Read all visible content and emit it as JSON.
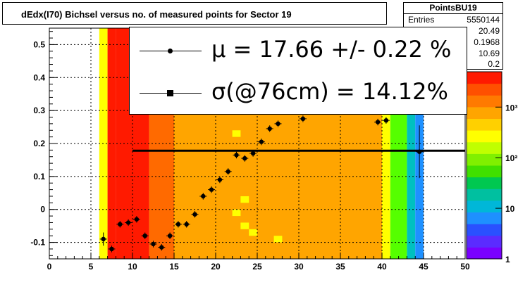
{
  "title": "dEdx(I70) Bichsel versus no. of measured points for Sector 19",
  "stats": {
    "name": "PointsBU19",
    "rows": [
      {
        "label": "Entries",
        "value": "5550144"
      },
      {
        "label": "",
        "value": "20.49"
      },
      {
        "label": "",
        "value": "0.1968"
      },
      {
        "label": "",
        "value": "10.69"
      },
      {
        "label": "",
        "value": "0.2"
      }
    ]
  },
  "legend": {
    "mu_text": "μ  = 17.66 +/-  0.22 %",
    "sigma_text": "σ(@76cm) = 14.12%"
  },
  "colors": {
    "red": "#ff1a00",
    "orange_red": "#ff6a00",
    "orange": "#ffa500",
    "yellow": "#ffff00",
    "green": "#55ff00",
    "cyan": "#00c0c0",
    "blue": "#1e90ff",
    "violet": "#7a00ff"
  },
  "chart_data": {
    "type": "heatmap",
    "xlim": [
      0,
      50
    ],
    "ylim": [
      -0.15,
      0.55
    ],
    "x_ticks": [
      "0",
      "5",
      "10",
      "15",
      "20",
      "25",
      "30",
      "35",
      "40",
      "45",
      "50"
    ],
    "y_ticks": [
      "-0.1",
      "0",
      "0.1",
      "0.2",
      "0.3",
      "0.4",
      "0.5"
    ],
    "z_scale": "log",
    "z_ticks": [
      "1",
      "10",
      "10²",
      "10³"
    ],
    "grid": true,
    "heatmap_columns": [
      {
        "x": [
          6,
          7
        ],
        "level": "yellow"
      },
      {
        "x": [
          7,
          8
        ],
        "level": "red"
      },
      {
        "x": [
          8,
          12
        ],
        "level": "red"
      },
      {
        "x": [
          12,
          15
        ],
        "level": "orange_red"
      },
      {
        "x": [
          15,
          40
        ],
        "level": "orange"
      },
      {
        "x": [
          40,
          41
        ],
        "level": "yellow"
      },
      {
        "x": [
          41,
          43
        ],
        "level": "green"
      },
      {
        "x": [
          43,
          44
        ],
        "level": "cyan"
      },
      {
        "x": [
          44,
          45
        ],
        "level": "blue"
      }
    ],
    "points": [
      {
        "x": 6.5,
        "y": -0.09,
        "err": 0.02
      },
      {
        "x": 7.5,
        "y": -0.12,
        "err": 0.01
      },
      {
        "x": 8.5,
        "y": -0.045,
        "err": 0.01
      },
      {
        "x": 9.5,
        "y": -0.04,
        "err": 0.01
      },
      {
        "x": 10.5,
        "y": -0.03,
        "err": 0.01
      },
      {
        "x": 11.5,
        "y": -0.08,
        "err": 0.01
      },
      {
        "x": 12.5,
        "y": -0.105,
        "err": 0.01
      },
      {
        "x": 13.5,
        "y": -0.115,
        "err": 0.01
      },
      {
        "x": 14.5,
        "y": -0.08,
        "err": 0.01
      },
      {
        "x": 15.5,
        "y": -0.045,
        "err": 0.01
      },
      {
        "x": 16.5,
        "y": -0.045,
        "err": 0.01
      },
      {
        "x": 17.5,
        "y": -0.015,
        "err": 0.01
      },
      {
        "x": 18.5,
        "y": 0.04,
        "err": 0.01
      },
      {
        "x": 19.5,
        "y": 0.06,
        "err": 0.01
      },
      {
        "x": 20.5,
        "y": 0.09,
        "err": 0.01
      },
      {
        "x": 21.5,
        "y": 0.115,
        "err": 0.01
      },
      {
        "x": 22.5,
        "y": 0.165,
        "err": 0.01
      },
      {
        "x": 23.5,
        "y": 0.155,
        "err": 0.01
      },
      {
        "x": 24.5,
        "y": 0.17,
        "err": 0.01
      },
      {
        "x": 25.5,
        "y": 0.205,
        "err": 0.01
      },
      {
        "x": 26.5,
        "y": 0.245,
        "err": 0.01
      },
      {
        "x": 27.5,
        "y": 0.26,
        "err": 0.01
      },
      {
        "x": 30.5,
        "y": 0.275,
        "err": 0.01
      },
      {
        "x": 39.5,
        "y": 0.265,
        "err": 0.01
      },
      {
        "x": 40.5,
        "y": 0.27,
        "err": 0.01
      },
      {
        "x": 44.5,
        "y": 0.175,
        "err": 0.08
      }
    ],
    "fit_line": {
      "x": [
        10,
        50
      ],
      "y": 0.178
    }
  }
}
